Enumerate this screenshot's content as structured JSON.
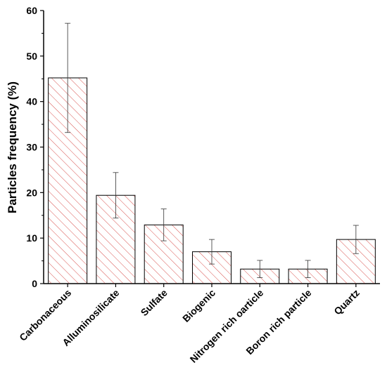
{
  "chart_data": {
    "type": "bar",
    "title": "",
    "xlabel": "",
    "ylabel": "Particles frequency (%)",
    "ylim": [
      0,
      60
    ],
    "yticks": [
      0,
      10,
      20,
      30,
      40,
      50,
      60
    ],
    "grid": false,
    "legend": "none",
    "categories": [
      "Carbonaceous",
      "Alluminosilicate",
      "Sulfate",
      "Biogenic",
      "Nitrogen rich oarticle",
      "Boron rich particle",
      "Quartz"
    ],
    "values": [
      45.2,
      19.4,
      12.9,
      7.0,
      3.2,
      3.2,
      9.7
    ],
    "errors": [
      12.0,
      5.0,
      3.5,
      2.7,
      1.9,
      1.9,
      3.1
    ],
    "bar_fill": "hatched",
    "hatch_color": "#d9534f",
    "bar_edge_color": "#000000"
  }
}
